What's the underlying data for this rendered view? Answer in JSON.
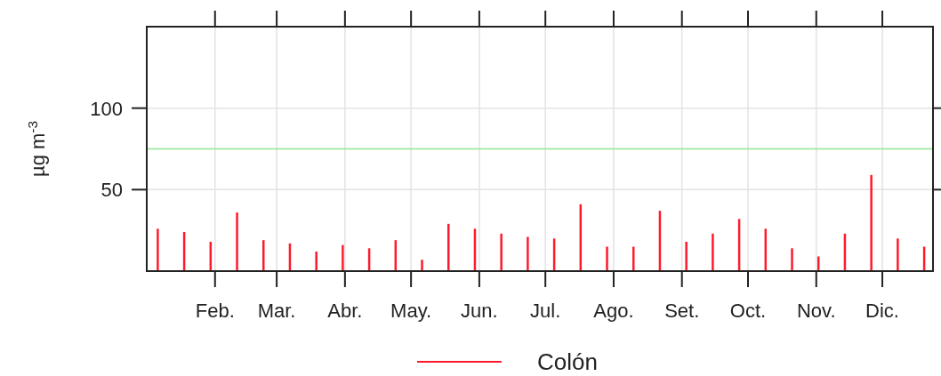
{
  "chart_data": {
    "type": "bar",
    "ylabel": "µg m$^{-3}$",
    "x": [
      "--01-06",
      "--01-18",
      "--01-30",
      "--02-11",
      "--02-23",
      "--03-07",
      "--03-19",
      "--03-31",
      "--04-12",
      "--04-24",
      "--05-06",
      "--05-18",
      "--05-30",
      "--06-11",
      "--06-23",
      "--07-05",
      "--07-17",
      "--07-29",
      "--08-10",
      "--08-22",
      "--09-03",
      "--09-15",
      "--09-27",
      "--10-09",
      "--10-21",
      "--11-02",
      "--11-14",
      "--11-26",
      "--12-08",
      "--12-20"
    ],
    "series": [
      {
        "name": "Colón",
        "color": "#ff1a2e",
        "values": [
          26,
          24,
          18,
          36,
          19,
          17,
          12,
          16,
          14,
          19,
          7,
          29,
          26,
          23,
          21,
          20,
          41,
          15,
          15,
          37,
          18,
          23,
          32,
          26,
          14,
          9,
          23,
          59,
          20,
          15
        ]
      }
    ],
    "xlim": [
      "--01-01",
      "--12-24"
    ],
    "xticks": [
      {
        "value": "--02-01",
        "label": "Feb."
      },
      {
        "value": "--03-01",
        "label": "Mar."
      },
      {
        "value": "--04-01",
        "label": "Abr."
      },
      {
        "value": "--05-01",
        "label": "May."
      },
      {
        "value": "--06-01",
        "label": "Jun."
      },
      {
        "value": "--07-01",
        "label": "Jul."
      },
      {
        "value": "--08-01",
        "label": "Ago."
      },
      {
        "value": "--09-01",
        "label": "Set."
      },
      {
        "value": "--10-01",
        "label": "Oct."
      },
      {
        "value": "--11-01",
        "label": "Nov."
      },
      {
        "value": "--12-01",
        "label": "Dic."
      }
    ],
    "ylim": [
      0,
      150
    ],
    "yticks": [
      50,
      100
    ],
    "ref_lines": [
      {
        "axis": "y",
        "value": 75,
        "color": "#90e890"
      }
    ],
    "grid": true,
    "legend": "bottom"
  }
}
